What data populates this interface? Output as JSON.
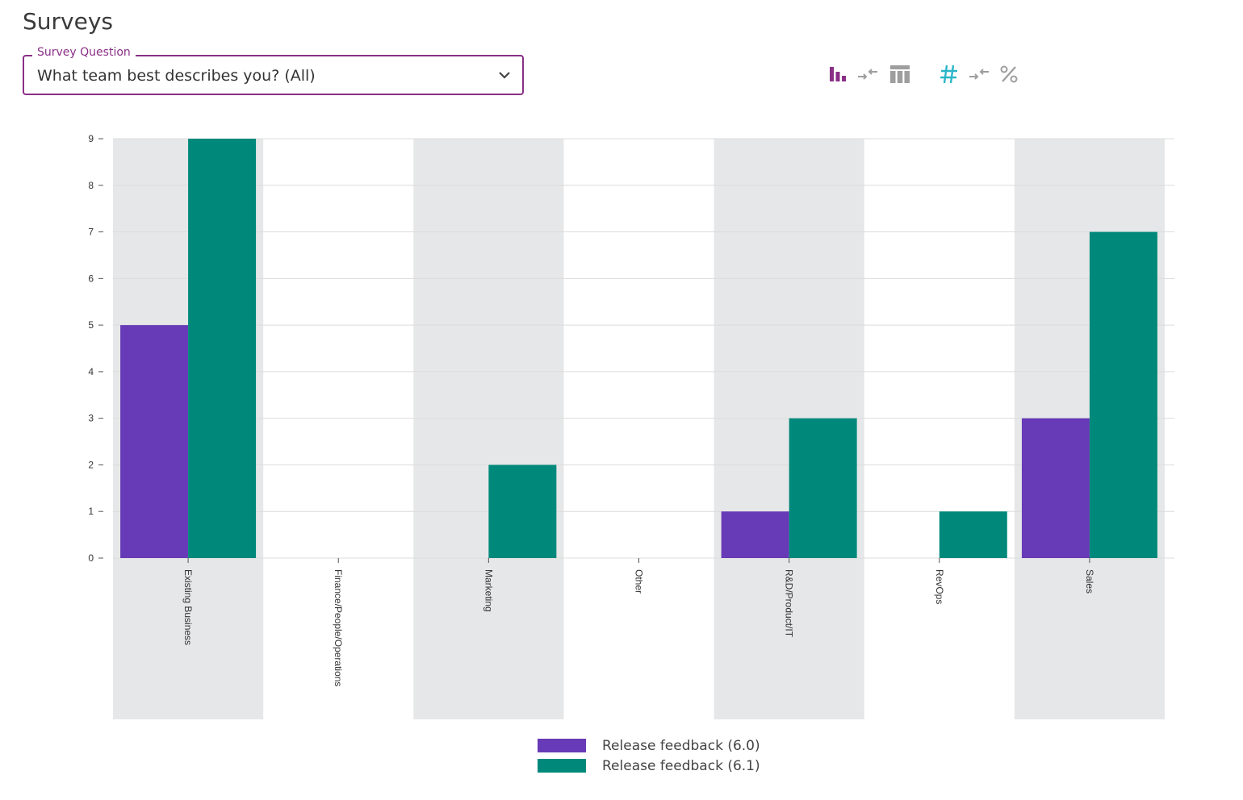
{
  "page": {
    "title": "Surveys"
  },
  "survey_select": {
    "legend": "Survey Question",
    "value": "What team best describes you? (All)"
  },
  "toolbar": {
    "icons": [
      "bar-chart-icon",
      "swap-arrows-icon",
      "table-icon",
      "hash-icon",
      "swap-arrows-icon",
      "percent-icon"
    ],
    "active_color": "#8a2f86",
    "hash_color": "#2bb5c9",
    "inactive_color": "#9e9e9e"
  },
  "colors": {
    "series_1": "#673ab7",
    "series_2": "#00897b",
    "band": "#e6e7e8",
    "grid": "#dcdcdc"
  },
  "chart_data": {
    "type": "bar",
    "categories": [
      "Existing Business",
      "Finance/People/Operations",
      "Marketing",
      "Other",
      "R&D/Product/IT",
      "RevOps",
      "Sales"
    ],
    "series": [
      {
        "name": "Release feedback (6.0)",
        "values": [
          5,
          0,
          0,
          0,
          1,
          0,
          3
        ]
      },
      {
        "name": "Release feedback (6.1)",
        "values": [
          9,
          0,
          2,
          0,
          3,
          1,
          7
        ]
      }
    ],
    "ylim": [
      0,
      9
    ],
    "yticks": [
      "0",
      "1",
      "2",
      "3",
      "4",
      "5",
      "6",
      "7",
      "8",
      "9"
    ],
    "grid": true,
    "legend_position": "bottom-center"
  }
}
